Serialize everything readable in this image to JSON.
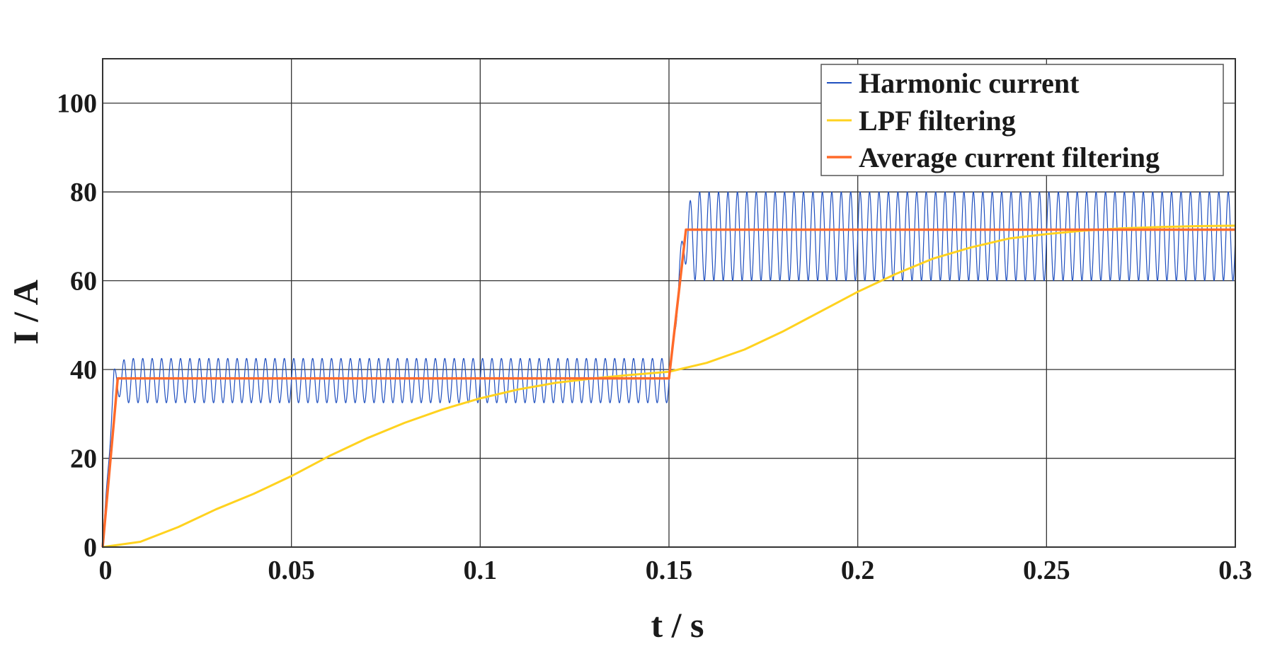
{
  "chart_data": {
    "type": "line",
    "xlabel": "t / s",
    "ylabel": "I / A",
    "xlim": [
      0,
      0.3
    ],
    "ylim": [
      0,
      110
    ],
    "x_ticks": [
      0,
      0.05,
      0.1,
      0.15,
      0.2,
      0.25,
      0.3
    ],
    "x_tick_labels": [
      "0",
      "0.05",
      "0.1",
      "0.15",
      "0.2",
      "0.25",
      "0.3"
    ],
    "y_ticks": [
      0,
      20,
      40,
      60,
      80,
      100
    ],
    "y_tick_labels": [
      "0",
      "20",
      "40",
      "60",
      "80",
      "100"
    ],
    "grid": true,
    "legend_position": "top-right",
    "series": [
      {
        "name": "Harmonic current",
        "color": "#1f4fbf",
        "description_values": {
          "segment1": {
            "t_start": 0,
            "t_end": 0.15,
            "mean": 37.5,
            "amplitude": 5,
            "min": 32,
            "max": 43,
            "cycles": 60
          },
          "segment2": {
            "t_start": 0.15,
            "t_end": 0.3,
            "mean": 70,
            "amplitude": 10,
            "min": 60,
            "max": 80,
            "cycles": 60
          }
        },
        "x": [
          0,
          0.0025,
          0.005,
          0.0075,
          0.01,
          0.15,
          0.1525,
          0.155,
          0.1575,
          0.16,
          0.3
        ],
        "y": [
          0,
          37.5,
          42.5,
          32.5,
          42.5,
          42.5,
          70,
          80,
          60,
          80,
          70
        ]
      },
      {
        "name": "LPF filtering",
        "color": "#ffd21f",
        "x": [
          0,
          0.01,
          0.02,
          0.03,
          0.04,
          0.05,
          0.06,
          0.07,
          0.08,
          0.09,
          0.1,
          0.11,
          0.12,
          0.13,
          0.14,
          0.15,
          0.16,
          0.17,
          0.18,
          0.19,
          0.2,
          0.21,
          0.22,
          0.23,
          0.24,
          0.25,
          0.26,
          0.27,
          0.28,
          0.29,
          0.3
        ],
        "y": [
          0,
          1.2,
          4.5,
          8.5,
          12,
          16,
          20.5,
          24.5,
          28,
          31,
          33.5,
          35.5,
          37,
          38,
          38.8,
          39.5,
          41.5,
          44.5,
          48.5,
          53,
          57.5,
          61.5,
          65,
          67.5,
          69.5,
          70.5,
          71.3,
          71.8,
          72.1,
          72.3,
          72.4
        ]
      },
      {
        "name": "Average current filtering",
        "color": "#ff6a2a",
        "x": [
          0,
          0.004,
          0.15,
          0.1545,
          0.3
        ],
        "y": [
          0,
          38,
          38,
          71.5,
          71.5
        ]
      }
    ]
  }
}
